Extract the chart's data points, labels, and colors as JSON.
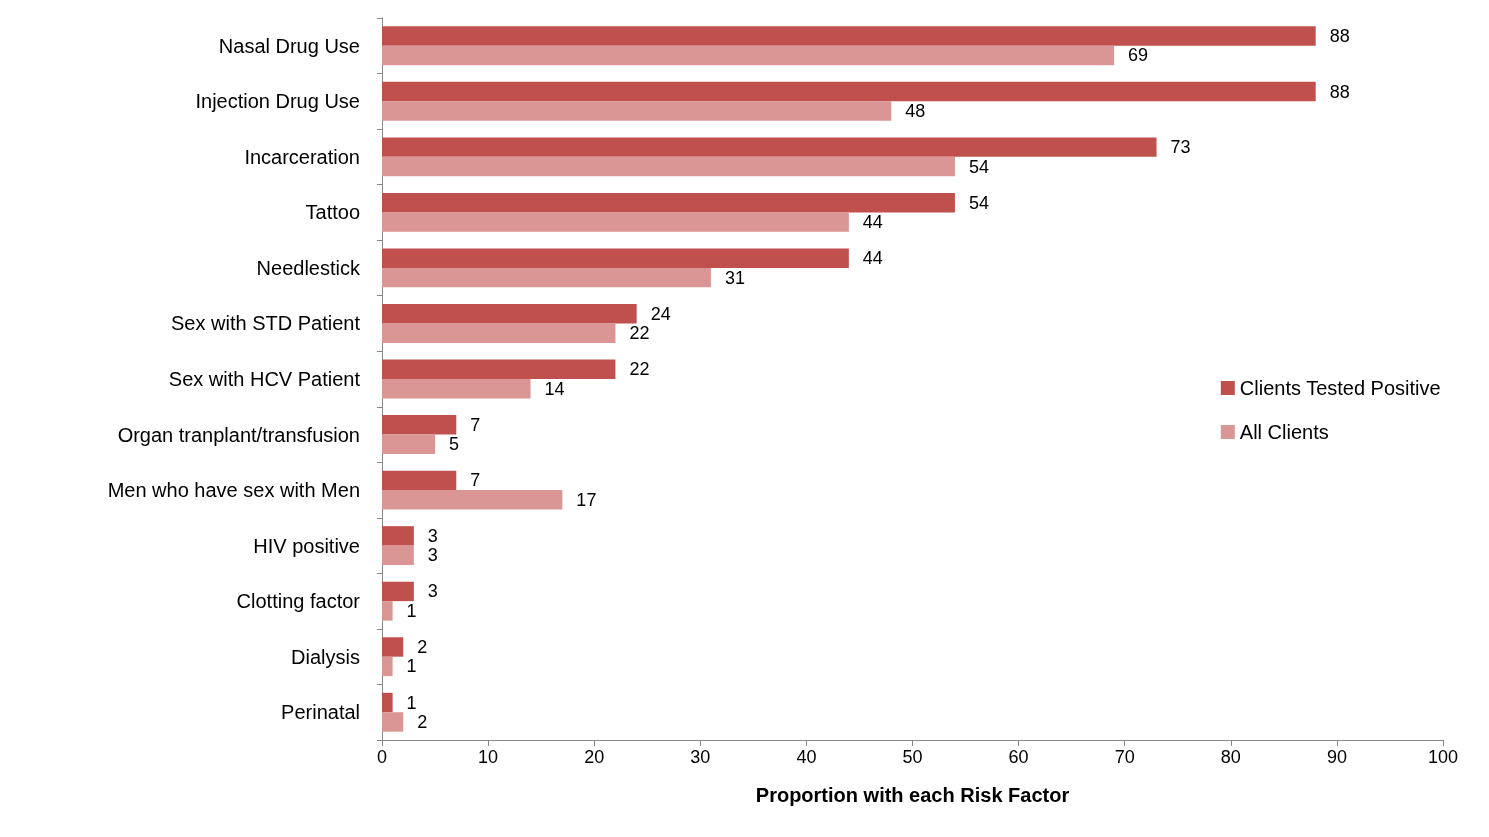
{
  "chart_data": {
    "type": "bar",
    "orientation": "horizontal",
    "xlabel": "Proportion with each Risk Factor",
    "categories": [
      "Nasal Drug Use",
      "Injection Drug Use",
      "Incarceration",
      "Tattoo",
      "Needlestick",
      "Sex with STD Patient",
      "Sex with HCV Patient",
      "Organ tranplant/transfusion",
      "Men who have sex with Men",
      "HIV positive",
      "Clotting factor",
      "Dialysis",
      "Perinatal"
    ],
    "series": [
      {
        "name": "Clients Tested Positive",
        "color": "#c0504d",
        "values": [
          88,
          88,
          73,
          54,
          44,
          24,
          22,
          7,
          7,
          3,
          3,
          2,
          1
        ]
      },
      {
        "name": "All Clients",
        "color": "#d99694",
        "values": [
          69,
          48,
          54,
          44,
          31,
          22,
          14,
          5,
          17,
          3,
          1,
          1,
          2
        ]
      }
    ],
    "xlim": [
      0,
      100
    ],
    "xticks": [
      0,
      10,
      20,
      30,
      40,
      50,
      60,
      70,
      80,
      90,
      100
    ],
    "data_labels": true,
    "legend": "right"
  }
}
